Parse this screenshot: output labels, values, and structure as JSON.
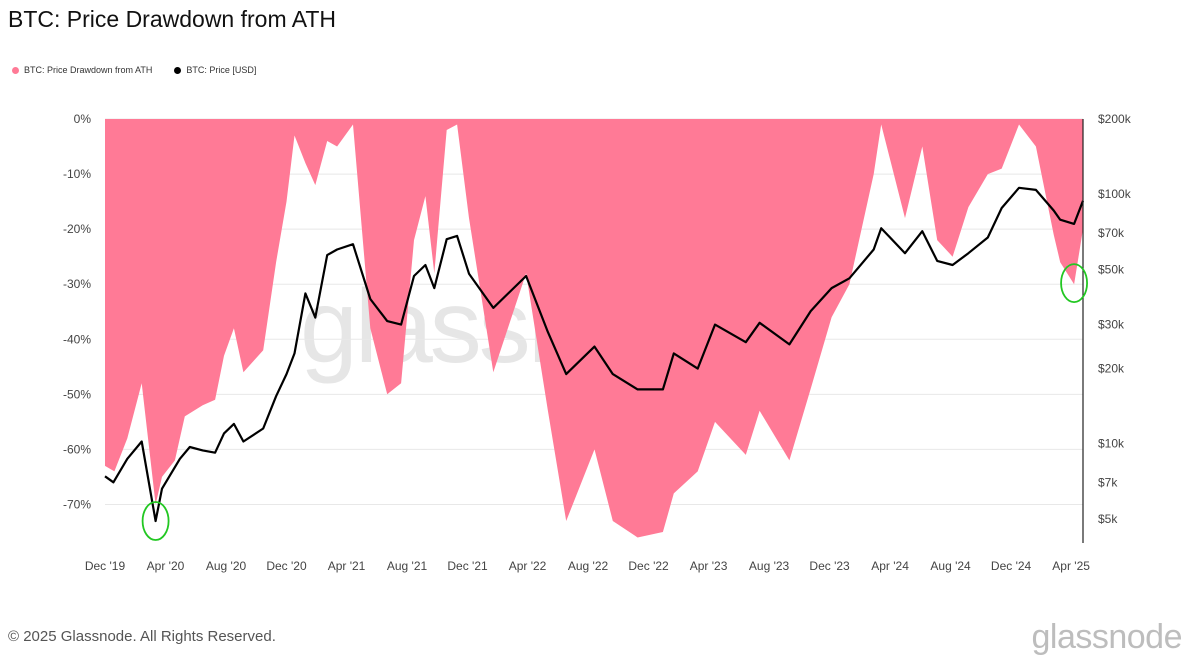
{
  "title": "BTC: Price Drawdown from ATH",
  "legend": {
    "drawdown_label": "BTC: Price Drawdown from ATH",
    "price_label": "BTC: Price [USD]"
  },
  "footer": "© 2025 Glassnode. All Rights Reserved.",
  "brand": "glassnode",
  "watermark": "glassnode",
  "colors": {
    "drawdown": "#ff7a96",
    "price": "#000000",
    "highlight": "#22c722",
    "grid": "#e8e8e8"
  },
  "chart_data": {
    "type": "area",
    "x_axis": {
      "ticks": [
        "Dec '19",
        "Apr '20",
        "Aug '20",
        "Dec '20",
        "Apr '21",
        "Aug '21",
        "Dec '21",
        "Apr '22",
        "Aug '22",
        "Dec '22",
        "Apr '23",
        "Aug '23",
        "Dec '23",
        "Apr '24",
        "Aug '24",
        "Dec '24",
        "Apr '25"
      ],
      "range": [
        "2019-12-01",
        "2025-04-25"
      ]
    },
    "y_left": {
      "ticks": [
        "0%",
        "-10%",
        "-20%",
        "-30%",
        "-40%",
        "-50%",
        "-60%",
        "-70%"
      ],
      "range": [
        -77,
        0
      ]
    },
    "y_right": {
      "scale": "log",
      "ticks": [
        "$200k",
        "$100k",
        "$70k",
        "$50k",
        "$30k",
        "$20k",
        "$10k",
        "$7k",
        "$5k"
      ],
      "tick_values": [
        200000,
        100000,
        70000,
        50000,
        30000,
        20000,
        10000,
        7000,
        5000
      ],
      "range": [
        4000,
        200000
      ]
    },
    "grid": true,
    "legend_position": "top-left",
    "series": [
      {
        "name": "BTC: Price Drawdown from ATH",
        "axis": "left",
        "style": "area",
        "dates": [
          "2019-12-01",
          "2019-12-20",
          "2020-01-15",
          "2020-02-13",
          "2020-03-12",
          "2020-03-25",
          "2020-04-20",
          "2020-05-10",
          "2020-06-15",
          "2020-07-10",
          "2020-07-28",
          "2020-08-17",
          "2020-09-05",
          "2020-10-15",
          "2020-11-10",
          "2020-12-01",
          "2020-12-17",
          "2021-01-08",
          "2021-01-28",
          "2021-02-21",
          "2021-03-13",
          "2021-04-14",
          "2021-05-19",
          "2021-06-22",
          "2021-07-20",
          "2021-08-15",
          "2021-09-07",
          "2021-09-25",
          "2021-10-20",
          "2021-11-10",
          "2021-12-04",
          "2022-01-22",
          "2022-03-29",
          "2022-05-12",
          "2022-06-18",
          "2022-08-14",
          "2022-09-20",
          "2022-11-09",
          "2022-12-30",
          "2023-01-21",
          "2023-03-10",
          "2023-04-14",
          "2023-06-15",
          "2023-07-13",
          "2023-09-11",
          "2023-10-24",
          "2023-12-05",
          "2024-01-10",
          "2024-02-28",
          "2024-03-14",
          "2024-05-01",
          "2024-06-05",
          "2024-07-05",
          "2024-08-05",
          "2024-09-06",
          "2024-10-15",
          "2024-11-12",
          "2024-12-17",
          "2025-01-20",
          "2025-02-25",
          "2025-03-10",
          "2025-04-07",
          "2025-04-25"
        ],
        "values": [
          -63,
          -64,
          -58,
          -48,
          -70,
          -65,
          -62,
          -54,
          -52,
          -51,
          -43,
          -38,
          -46,
          -42,
          -26,
          -15,
          -3,
          -8,
          -12,
          -4,
          -5,
          -1,
          -38,
          -50,
          -48,
          -22,
          -14,
          -28,
          -2,
          -1,
          -18,
          -46,
          -28,
          -53,
          -73,
          -60,
          -73,
          -76,
          -75,
          -68,
          -64,
          -55,
          -61,
          -53,
          -62,
          -49,
          -36,
          -30,
          -10,
          -1,
          -18,
          -5,
          -22,
          -25,
          -16,
          -10,
          -9,
          -1,
          -5,
          -21,
          -26,
          -30,
          -20
        ]
      },
      {
        "name": "BTC: Price [USD]",
        "axis": "right",
        "style": "line",
        "dates": [
          "2019-12-01",
          "2019-12-18",
          "2020-01-15",
          "2020-02-13",
          "2020-03-12",
          "2020-03-25",
          "2020-04-30",
          "2020-05-20",
          "2020-06-15",
          "2020-07-10",
          "2020-07-28",
          "2020-08-17",
          "2020-09-05",
          "2020-10-15",
          "2020-11-10",
          "2020-12-01",
          "2020-12-17",
          "2021-01-08",
          "2021-01-28",
          "2021-02-21",
          "2021-03-13",
          "2021-04-14",
          "2021-05-19",
          "2021-06-22",
          "2021-07-20",
          "2021-08-15",
          "2021-09-07",
          "2021-09-25",
          "2021-10-20",
          "2021-11-10",
          "2021-12-04",
          "2022-01-22",
          "2022-03-29",
          "2022-05-12",
          "2022-06-18",
          "2022-08-14",
          "2022-09-20",
          "2022-11-09",
          "2022-12-30",
          "2023-01-21",
          "2023-03-10",
          "2023-04-14",
          "2023-06-15",
          "2023-07-13",
          "2023-09-11",
          "2023-10-24",
          "2023-12-05",
          "2024-01-10",
          "2024-02-28",
          "2024-03-14",
          "2024-05-01",
          "2024-06-05",
          "2024-07-05",
          "2024-08-05",
          "2024-09-06",
          "2024-10-15",
          "2024-11-12",
          "2024-12-17",
          "2025-01-20",
          "2025-02-25",
          "2025-03-10",
          "2025-04-07",
          "2025-04-25"
        ],
        "values": [
          7400,
          7000,
          8700,
          10200,
          4900,
          6600,
          8700,
          9700,
          9400,
          9200,
          11000,
          12000,
          10200,
          11500,
          15500,
          19000,
          23000,
          40000,
          32000,
          57000,
          60000,
          63000,
          38000,
          31000,
          30000,
          47000,
          52000,
          42000,
          66000,
          68000,
          48000,
          35000,
          47000,
          28000,
          19000,
          24500,
          19000,
          16500,
          16500,
          23000,
          20000,
          30000,
          25500,
          30500,
          25000,
          34000,
          42000,
          46000,
          60000,
          73000,
          58000,
          71000,
          54000,
          52000,
          58000,
          67000,
          88000,
          106000,
          104000,
          86000,
          79000,
          76000,
          94000
        ]
      }
    ],
    "annotations": [
      {
        "type": "circle",
        "date": "2020-03-12",
        "axis": "right",
        "value": 4900
      },
      {
        "type": "circle",
        "date": "2025-04-07",
        "axis": "right",
        "value": 44000
      }
    ]
  }
}
